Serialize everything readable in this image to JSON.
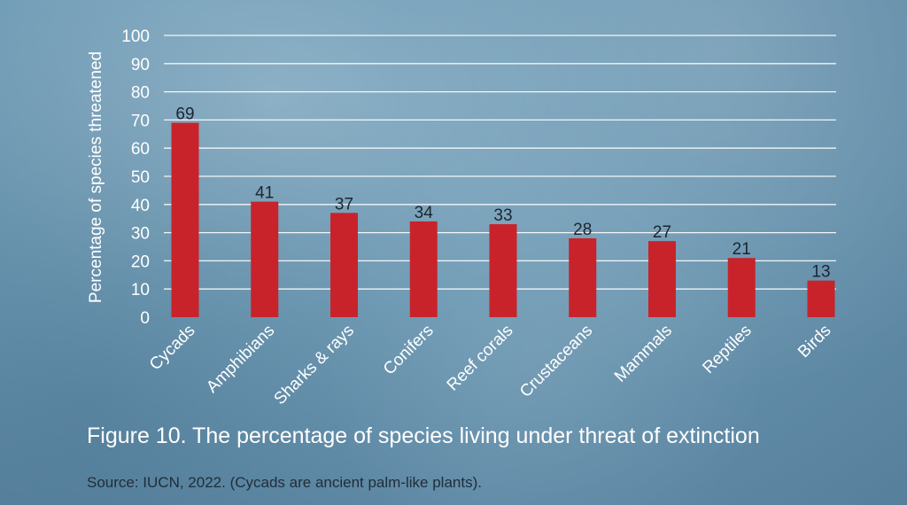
{
  "chart_data": {
    "type": "bar",
    "ylabel": "Percentage of species threatened",
    "xlabel": "",
    "ylim": [
      0,
      100
    ],
    "yticks": [
      0,
      10,
      20,
      30,
      40,
      50,
      60,
      70,
      80,
      90,
      100
    ],
    "grid": true,
    "categories": [
      "Cycads",
      "Amphibians",
      "Sharks & rays",
      "Conifers",
      "Reef corals",
      "Crustaceans",
      "Mammals",
      "Reptiles",
      "Birds"
    ],
    "values": [
      69,
      41,
      37,
      34,
      33,
      28,
      27,
      21,
      13
    ],
    "bar_color": "#c8232b"
  },
  "caption": "Figure 10. The percentage of species living under threat of extinction",
  "source": "Source: IUCN, 2022. (Cycads are ancient palm-like plants)."
}
